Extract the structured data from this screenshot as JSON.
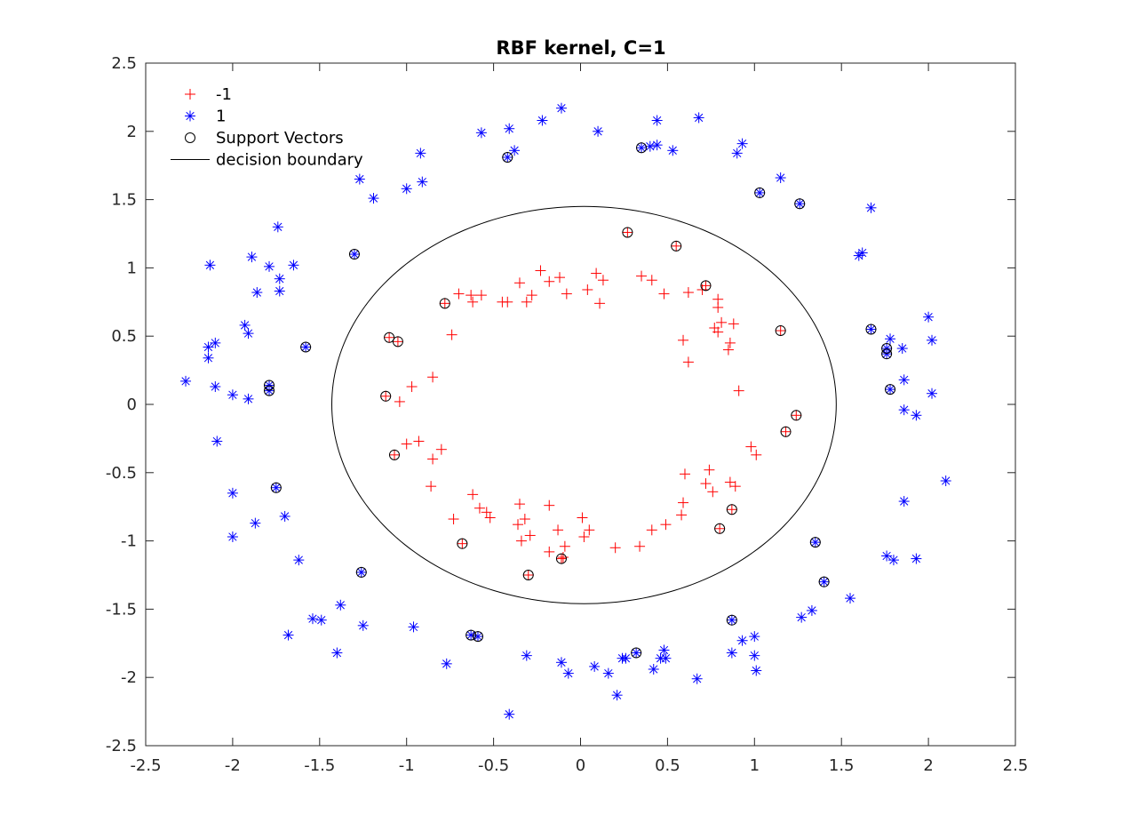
{
  "chart_data": {
    "type": "scatter",
    "title": "RBF kernel, C=1",
    "xlim": [
      -2.5,
      2.5
    ],
    "ylim": [
      -2.5,
      2.5
    ],
    "xticks": [
      "-2.5",
      "-2",
      "-1.5",
      "-1",
      "-0.5",
      "0",
      "0.5",
      "1",
      "1.5",
      "2",
      "2.5"
    ],
    "yticks": [
      "-2.5",
      "-2",
      "-1.5",
      "-1",
      "-0.5",
      "0",
      "0.5",
      "1",
      "1.5",
      "2",
      "2.5"
    ],
    "grid": false,
    "legend_position": "top-left",
    "colors": {
      "neg": "#ff0000",
      "pos": "#0000ff",
      "sv": "#000000",
      "boundary": "#000000"
    },
    "legend": [
      {
        "label": "-1",
        "marker": "plus",
        "color": "#ff0000"
      },
      {
        "label": "1",
        "marker": "asterisk",
        "color": "#0000ff"
      },
      {
        "label": "Support Vectors",
        "marker": "circle",
        "color": "#000000"
      },
      {
        "label": "decision boundary",
        "marker": "line",
        "color": "#000000"
      }
    ],
    "series": [
      {
        "name": "-1",
        "marker": "plus",
        "points": [
          [
            -0.78,
            0.74
          ],
          [
            -0.7,
            0.81
          ],
          [
            -0.63,
            0.8
          ],
          [
            -0.62,
            0.75
          ],
          [
            -0.57,
            0.8
          ],
          [
            -0.45,
            0.75
          ],
          [
            -0.42,
            0.75
          ],
          [
            -0.35,
            0.89
          ],
          [
            -0.31,
            0.75
          ],
          [
            -0.28,
            0.8
          ],
          [
            -0.23,
            0.98
          ],
          [
            -0.18,
            0.9
          ],
          [
            -0.12,
            0.93
          ],
          [
            -0.08,
            0.81
          ],
          [
            0.04,
            0.84
          ],
          [
            0.09,
            0.96
          ],
          [
            0.11,
            0.74
          ],
          [
            0.13,
            0.91
          ],
          [
            0.35,
            0.94
          ],
          [
            0.41,
            0.91
          ],
          [
            0.48,
            0.81
          ],
          [
            0.62,
            0.82
          ],
          [
            0.7,
            0.84
          ],
          [
            0.72,
            0.87
          ],
          [
            0.77,
            0.56
          ],
          [
            0.79,
            0.77
          ],
          [
            0.79,
            0.71
          ],
          [
            0.81,
            0.6
          ],
          [
            0.79,
            0.53
          ],
          [
            0.85,
            0.4
          ],
          [
            0.86,
            0.45
          ],
          [
            0.88,
            0.59
          ],
          [
            0.59,
            0.47
          ],
          [
            0.62,
            0.31
          ],
          [
            0.91,
            0.1
          ],
          [
            0.27,
            1.26
          ],
          [
            0.55,
            1.16
          ],
          [
            -0.74,
            0.51
          ],
          [
            -1.05,
            0.46
          ],
          [
            -1.1,
            0.49
          ],
          [
            -0.85,
            0.2
          ],
          [
            -0.97,
            0.13
          ],
          [
            -1.04,
            0.02
          ],
          [
            -1.12,
            0.06
          ],
          [
            -1.0,
            -0.29
          ],
          [
            -0.93,
            -0.27
          ],
          [
            -0.85,
            -0.4
          ],
          [
            -0.8,
            -0.33
          ],
          [
            -0.86,
            -0.6
          ],
          [
            -1.07,
            -0.37
          ],
          [
            -0.73,
            -0.84
          ],
          [
            -0.62,
            -0.66
          ],
          [
            -0.58,
            -0.76
          ],
          [
            -0.54,
            -0.79
          ],
          [
            -0.52,
            -0.83
          ],
          [
            -0.35,
            -0.73
          ],
          [
            -0.36,
            -0.88
          ],
          [
            -0.34,
            -1.0
          ],
          [
            -0.32,
            -0.84
          ],
          [
            -0.29,
            -0.96
          ],
          [
            -0.18,
            -0.74
          ],
          [
            -0.18,
            -1.08
          ],
          [
            -0.13,
            -0.92
          ],
          [
            -0.1,
            -1.12
          ],
          [
            -0.09,
            -1.04
          ],
          [
            -0.11,
            -1.13
          ],
          [
            0.02,
            -0.97
          ],
          [
            0.01,
            -0.83
          ],
          [
            0.05,
            -0.92
          ],
          [
            0.2,
            -1.05
          ],
          [
            0.34,
            -1.04
          ],
          [
            0.41,
            -0.92
          ],
          [
            0.49,
            -0.88
          ],
          [
            0.58,
            -0.81
          ],
          [
            0.59,
            -0.72
          ],
          [
            0.6,
            -0.51
          ],
          [
            0.72,
            -0.58
          ],
          [
            0.74,
            -0.48
          ],
          [
            0.76,
            -0.64
          ],
          [
            0.86,
            -0.57
          ],
          [
            0.87,
            -0.77
          ],
          [
            0.89,
            -0.6
          ],
          [
            0.8,
            -0.91
          ],
          [
            0.98,
            -0.31
          ],
          [
            1.01,
            -0.37
          ],
          [
            1.18,
            -0.2
          ],
          [
            1.24,
            -0.08
          ],
          [
            1.15,
            0.54
          ],
          [
            -0.68,
            -1.02
          ],
          [
            -0.3,
            -1.25
          ]
        ]
      },
      {
        "name": "1",
        "marker": "asterisk",
        "points": [
          [
            -0.11,
            2.17
          ],
          [
            -0.22,
            2.08
          ],
          [
            0.1,
            2.0
          ],
          [
            -0.57,
            1.99
          ],
          [
            -0.41,
            2.02
          ],
          [
            -0.38,
            1.86
          ],
          [
            -0.42,
            1.81
          ],
          [
            0.35,
            1.88
          ],
          [
            0.4,
            1.89
          ],
          [
            0.44,
            1.9
          ],
          [
            0.44,
            2.08
          ],
          [
            0.53,
            1.86
          ],
          [
            0.68,
            2.1
          ],
          [
            0.9,
            1.84
          ],
          [
            0.93,
            1.91
          ],
          [
            1.03,
            1.55
          ],
          [
            1.15,
            1.66
          ],
          [
            1.26,
            1.47
          ],
          [
            1.67,
            1.44
          ],
          [
            1.6,
            1.09
          ],
          [
            1.62,
            1.11
          ],
          [
            1.67,
            0.55
          ],
          [
            1.76,
            0.41
          ],
          [
            1.76,
            0.37
          ],
          [
            1.78,
            0.48
          ],
          [
            1.85,
            0.41
          ],
          [
            2.0,
            0.64
          ],
          [
            2.02,
            0.47
          ],
          [
            1.86,
            0.18
          ],
          [
            1.78,
            0.11
          ],
          [
            2.02,
            0.08
          ],
          [
            1.86,
            -0.04
          ],
          [
            1.93,
            -0.08
          ],
          [
            2.1,
            -0.56
          ],
          [
            1.86,
            -0.71
          ],
          [
            1.76,
            -1.11
          ],
          [
            1.8,
            -1.14
          ],
          [
            1.93,
            -1.13
          ],
          [
            1.35,
            -1.01
          ],
          [
            1.4,
            -1.3
          ],
          [
            1.55,
            -1.42
          ],
          [
            1.33,
            -1.51
          ],
          [
            1.27,
            -1.56
          ],
          [
            0.87,
            -1.58
          ],
          [
            1.0,
            -1.7
          ],
          [
            0.93,
            -1.73
          ],
          [
            0.87,
            -1.82
          ],
          [
            1.0,
            -1.84
          ],
          [
            1.01,
            -1.95
          ],
          [
            0.67,
            -2.01
          ],
          [
            0.48,
            -1.8
          ],
          [
            0.46,
            -1.86
          ],
          [
            0.49,
            -1.86
          ],
          [
            0.42,
            -1.94
          ],
          [
            0.32,
            -1.82
          ],
          [
            0.26,
            -1.86
          ],
          [
            0.24,
            -1.86
          ],
          [
            0.16,
            -1.97
          ],
          [
            0.21,
            -2.13
          ],
          [
            0.08,
            -1.92
          ],
          [
            -0.07,
            -1.97
          ],
          [
            -0.11,
            -1.89
          ],
          [
            -0.31,
            -1.84
          ],
          [
            -0.41,
            -2.27
          ],
          [
            -0.63,
            -1.69
          ],
          [
            -0.59,
            -1.7
          ],
          [
            -0.77,
            -1.9
          ],
          [
            -0.96,
            -1.63
          ],
          [
            -1.25,
            -1.62
          ],
          [
            -1.38,
            -1.47
          ],
          [
            -1.49,
            -1.58
          ],
          [
            -1.54,
            -1.57
          ],
          [
            -1.4,
            -1.82
          ],
          [
            -1.68,
            -1.69
          ],
          [
            -1.26,
            -1.23
          ],
          [
            -1.62,
            -1.14
          ],
          [
            -1.7,
            -0.82
          ],
          [
            -1.75,
            -0.61
          ],
          [
            -1.87,
            -0.87
          ],
          [
            -2.0,
            -0.97
          ],
          [
            -2.0,
            -0.65
          ],
          [
            -2.09,
            -0.27
          ],
          [
            -2.1,
            0.13
          ],
          [
            -2.0,
            0.07
          ],
          [
            -1.91,
            0.04
          ],
          [
            -1.79,
            0.1
          ],
          [
            -1.79,
            0.14
          ],
          [
            -2.27,
            0.17
          ],
          [
            -2.14,
            0.34
          ],
          [
            -2.14,
            0.42
          ],
          [
            -2.1,
            0.45
          ],
          [
            -1.93,
            0.58
          ],
          [
            -1.91,
            0.52
          ],
          [
            -1.58,
            0.42
          ],
          [
            -1.86,
            0.82
          ],
          [
            -1.73,
            0.83
          ],
          [
            -1.73,
            0.92
          ],
          [
            -1.79,
            1.01
          ],
          [
            -1.65,
            1.02
          ],
          [
            -1.89,
            1.08
          ],
          [
            -2.13,
            1.02
          ],
          [
            -1.74,
            1.3
          ],
          [
            -1.3,
            1.1
          ],
          [
            -1.27,
            1.65
          ],
          [
            -1.19,
            1.51
          ],
          [
            -1.0,
            1.58
          ],
          [
            -0.91,
            1.63
          ],
          [
            -0.92,
            1.84
          ]
        ]
      },
      {
        "name": "Support Vectors",
        "marker": "circle",
        "points": [
          [
            -0.42,
            1.81
          ],
          [
            0.35,
            1.88
          ],
          [
            1.03,
            1.55
          ],
          [
            1.26,
            1.47
          ],
          [
            1.67,
            0.55
          ],
          [
            1.76,
            0.41
          ],
          [
            1.76,
            0.37
          ],
          [
            1.78,
            0.11
          ],
          [
            1.35,
            -1.01
          ],
          [
            1.4,
            -1.3
          ],
          [
            0.87,
            -1.58
          ],
          [
            0.32,
            -1.82
          ],
          [
            -0.63,
            -1.69
          ],
          [
            -0.59,
            -1.7
          ],
          [
            -1.26,
            -1.23
          ],
          [
            -1.75,
            -0.61
          ],
          [
            -1.79,
            0.1
          ],
          [
            -1.79,
            0.14
          ],
          [
            -1.58,
            0.42
          ],
          [
            -1.3,
            1.1
          ],
          [
            0.27,
            1.26
          ],
          [
            0.55,
            1.16
          ],
          [
            0.72,
            0.87
          ],
          [
            -0.78,
            0.74
          ],
          [
            -1.1,
            0.49
          ],
          [
            -1.05,
            0.46
          ],
          [
            -1.12,
            0.06
          ],
          [
            -1.07,
            -0.37
          ],
          [
            1.15,
            0.54
          ],
          [
            1.24,
            -0.08
          ],
          [
            1.18,
            -0.2
          ],
          [
            0.87,
            -0.77
          ],
          [
            0.8,
            -0.91
          ],
          [
            -0.68,
            -1.02
          ],
          [
            -0.11,
            -1.13
          ],
          [
            -0.3,
            -1.25
          ]
        ]
      }
    ],
    "decision_boundary": {
      "name": "decision boundary",
      "shape": "ellipse",
      "center": [
        0.02,
        0.0
      ],
      "x_radius": 1.45,
      "y_top": 1.45,
      "y_bottom": -1.46
    }
  }
}
